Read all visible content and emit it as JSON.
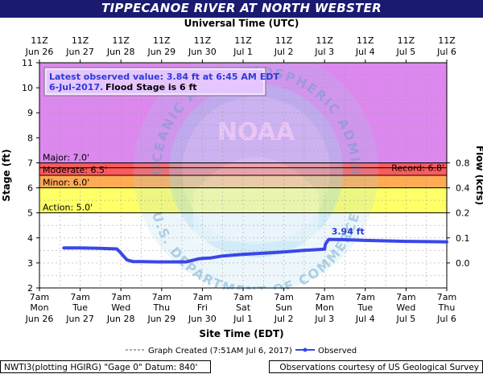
{
  "title": "TIPPECANOE RIVER AT NORTH WEBSTER",
  "top_axis_title": "Universal Time (UTC)",
  "bottom_axis_title": "Site Time (EDT)",
  "annotation": {
    "latest_line1": "Latest observed value: 3.84 ft at 6:45 AM EDT",
    "latest_line2": "6-Jul-2017.",
    "flood_text": "Flood Stage is 6 ft"
  },
  "legend": {
    "created": "Graph Created (7:51AM Jul 6, 2017)",
    "observed": "Observed"
  },
  "footer": {
    "left": "NWTI3(plotting HGIRG) \"Gage 0\" Datum: 840'",
    "right": "Observations courtesy of US Geological Survey"
  },
  "watermark": "NATIONAL OCEANIC AND ATMOSPHERIC ADMINISTRATION · U.S. DEPARTMENT OF COMMERCE · NOAA",
  "colors": {
    "title_bg": "#1a1a70",
    "record_band": "#dd88ee",
    "major_band": "#cc3030",
    "moderate_band": "#ff5a5a",
    "minor_band": "#ffaa55",
    "action_band": "#ffff66",
    "observed": "#3a47e8",
    "noaa_logo": "#9ed3ee"
  },
  "chart_data": {
    "type": "line",
    "title": "TIPPECANOE RIVER AT NORTH WEBSTER",
    "xlabel": "Site Time (EDT)",
    "x2label": "Universal Time (UTC)",
    "ylabel": "Stage (ft)",
    "y2label": "Flow (kcfs)",
    "ylim": [
      2,
      11
    ],
    "yticks": [
      2,
      3,
      4,
      5,
      6,
      7,
      8,
      9,
      10,
      11
    ],
    "y2ticks": [
      {
        "stage": 3.0,
        "label": "0.0"
      },
      {
        "stage": 4.0,
        "label": "0.1"
      },
      {
        "stage": 5.0,
        "label": "0.2"
      },
      {
        "stage": 6.0,
        "label": "0.4"
      },
      {
        "stage": 7.0,
        "label": "0.8"
      }
    ],
    "xlim_days": [
      0,
      10
    ],
    "xticks_bottom": [
      {
        "l1": "7am",
        "l2": "Mon",
        "l3": "Jun 26"
      },
      {
        "l1": "7am",
        "l2": "Tue",
        "l3": "Jun 27"
      },
      {
        "l1": "7am",
        "l2": "Wed",
        "l3": "Jun 28"
      },
      {
        "l1": "7am",
        "l2": "Thu",
        "l3": "Jun 29"
      },
      {
        "l1": "7am",
        "l2": "Fri",
        "l3": "Jun 30"
      },
      {
        "l1": "7am",
        "l2": "Sat",
        "l3": "Jul 1"
      },
      {
        "l1": "7am",
        "l2": "Sun",
        "l3": "Jul 2"
      },
      {
        "l1": "7am",
        "l2": "Mon",
        "l3": "Jul 3"
      },
      {
        "l1": "7am",
        "l2": "Tue",
        "l3": "Jul 4"
      },
      {
        "l1": "7am",
        "l2": "Wed",
        "l3": "Jul 5"
      },
      {
        "l1": "7am",
        "l2": "Thu",
        "l3": "Jul 6"
      }
    ],
    "xticks_top": [
      {
        "l1": "11Z",
        "l2": "Jun 26"
      },
      {
        "l1": "11Z",
        "l2": "Jun 27"
      },
      {
        "l1": "11Z",
        "l2": "Jun 28"
      },
      {
        "l1": "11Z",
        "l2": "Jun 29"
      },
      {
        "l1": "11Z",
        "l2": "Jun 30"
      },
      {
        "l1": "11Z",
        "l2": "Jul 1"
      },
      {
        "l1": "11Z",
        "l2": "Jul 2"
      },
      {
        "l1": "11Z",
        "l2": "Jul 3"
      },
      {
        "l1": "11Z",
        "l2": "Jul 4"
      },
      {
        "l1": "11Z",
        "l2": "Jul 5"
      },
      {
        "l1": "11Z",
        "l2": "Jul 6"
      }
    ],
    "flood_categories": [
      {
        "name": "Action",
        "label": "Action:  5.0'",
        "from": 5.0,
        "to": 6.0,
        "color": "#ffff66"
      },
      {
        "name": "Minor",
        "label": "Minor:  6.0'",
        "from": 6.0,
        "to": 6.5,
        "color": "#ffaa55"
      },
      {
        "name": "Moderate",
        "label": "Moderate:  6.5'",
        "from": 6.5,
        "to": 7.0,
        "color": "#ff5a5a"
      },
      {
        "name": "Major",
        "label": "Major:  7.0'",
        "from": 7.0,
        "to": 11.0,
        "color": "#dd88ee"
      }
    ],
    "record": {
      "label": "Record:  6.8'",
      "value": 6.8
    },
    "peak_label": {
      "text": "3.94 ft",
      "x": 7.05,
      "y": 3.94
    },
    "series": [
      {
        "name": "Observed",
        "x": [
          0.6,
          1.0,
          1.5,
          1.9,
          1.97,
          2.05,
          2.15,
          2.3,
          2.5,
          2.9,
          3.3,
          3.6,
          3.8,
          3.9,
          4.0,
          4.2,
          4.5,
          5.0,
          5.5,
          6.0,
          6.5,
          7.0,
          7.02,
          7.1,
          7.5,
          8.0,
          8.5,
          9.0,
          9.5,
          10.0
        ],
        "y": [
          3.6,
          3.6,
          3.58,
          3.56,
          3.45,
          3.3,
          3.12,
          3.05,
          3.05,
          3.04,
          3.04,
          3.04,
          3.12,
          3.16,
          3.18,
          3.2,
          3.28,
          3.34,
          3.39,
          3.44,
          3.5,
          3.55,
          3.75,
          3.94,
          3.93,
          3.9,
          3.88,
          3.86,
          3.85,
          3.84
        ]
      }
    ]
  }
}
